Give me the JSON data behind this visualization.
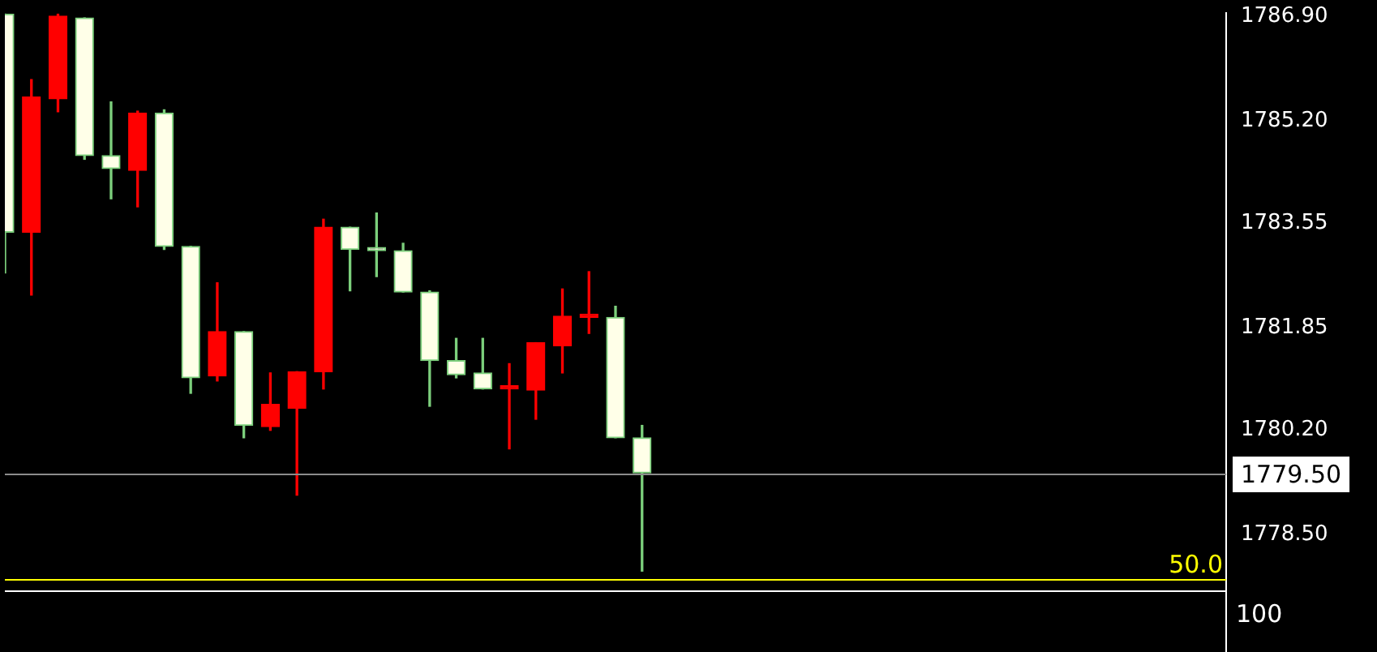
{
  "chart_data": {
    "type": "candlestick",
    "categories": [
      null,
      null,
      null,
      null,
      null,
      null,
      null,
      null,
      null,
      null,
      null,
      null,
      null,
      null,
      null,
      null,
      null,
      null,
      null,
      null,
      null,
      null,
      null,
      null,
      null,
      null,
      null,
      null,
      null,
      null,
      null,
      null,
      null,
      null,
      null,
      null,
      null,
      null,
      null,
      null,
      null,
      null,
      null,
      null,
      null,
      null,
      null
    ],
    "ohlc": [
      [
        1786.93,
        1786.93,
        1782.74,
        1783.4
      ],
      [
        1783.4,
        1785.87,
        1782.38,
        1785.59
      ],
      [
        1785.56,
        1786.93,
        1785.35,
        1786.9
      ],
      [
        1786.87,
        1786.87,
        1784.58,
        1784.64
      ],
      [
        1784.64,
        1785.51,
        1783.94,
        1784.43
      ],
      [
        1784.4,
        1785.36,
        1783.81,
        1785.33
      ],
      [
        1785.33,
        1785.38,
        1783.12,
        1783.17
      ],
      [
        1783.17,
        1783.17,
        1780.79,
        1781.04
      ],
      [
        1781.07,
        1782.58,
        1780.99,
        1781.79
      ],
      [
        1781.79,
        1781.79,
        1780.07,
        1780.27
      ],
      [
        1780.25,
        1781.12,
        1780.19,
        1780.61
      ],
      [
        1780.55,
        1781.14,
        1779.14,
        1781.14
      ],
      [
        1781.14,
        1783.61,
        1780.86,
        1783.48
      ],
      [
        1783.48,
        1783.48,
        1782.45,
        1783.12
      ],
      [
        1783.12,
        1783.71,
        1782.68,
        1783.1
      ],
      [
        1783.1,
        1783.22,
        1782.43,
        1782.43
      ],
      [
        1782.43,
        1782.45,
        1780.58,
        1781.32
      ],
      [
        1781.32,
        1781.68,
        1781.04,
        1781.09
      ],
      [
        1781.12,
        1781.68,
        1780.86,
        1780.86
      ],
      [
        1780.86,
        1781.27,
        1779.89,
        1780.88
      ],
      [
        1780.84,
        1781.61,
        1780.37,
        1781.61
      ],
      [
        1781.56,
        1782.48,
        1781.12,
        1782.04
      ],
      [
        1782.02,
        1782.76,
        1781.76,
        1782.03
      ],
      [
        1782.02,
        1782.2,
        1780.07,
        1780.07
      ],
      [
        1780.07,
        1780.27,
        1777.91,
        1779.5
      ],
      null,
      null,
      null,
      null,
      null,
      null,
      null,
      null,
      null,
      null,
      null,
      null,
      null,
      null,
      null,
      null,
      null,
      null,
      null,
      null,
      null,
      null
    ],
    "ylim": [
      1776.6,
      1786.95
    ],
    "yticks": [
      {
        "value": 1786.9,
        "label": "1786.90"
      },
      {
        "value": 1785.2,
        "label": "1785.20"
      },
      1783.55,
      1781.85,
      {
        "value": 1780.2,
        "label": "1780.20"
      },
      {
        "value": 1778.5,
        "label": "1778.50"
      }
    ],
    "grid": false,
    "legend": false,
    "tick_labels": "y",
    "ref_lines": [
      {
        "axis": "y",
        "value": 1779.5,
        "label": "1779.50",
        "color": "#8c8c8c"
      },
      {
        "axis": "y",
        "value": 1777.78,
        "color": "#ffff00"
      },
      {
        "axis": "y",
        "value": 1777.6,
        "color": "#ffffff"
      }
    ],
    "annotations": [
      {
        "text": "50.0",
        "y": 1777.78
      },
      "100"
    ]
  }
}
